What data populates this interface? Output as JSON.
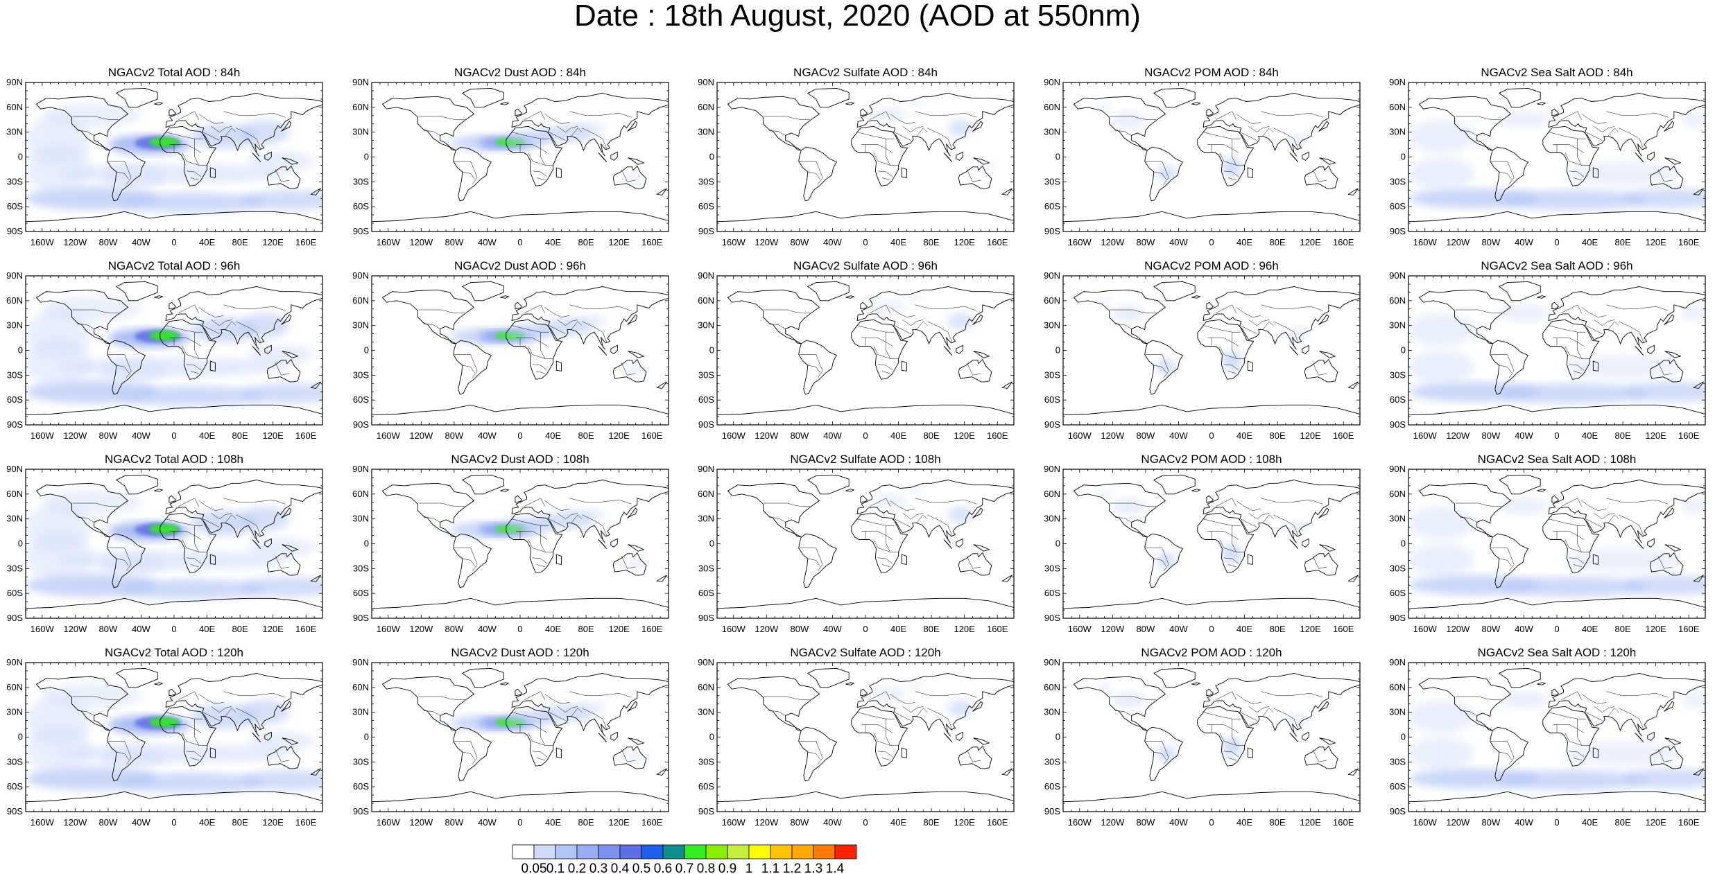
{
  "title": "Date : 18th August, 2020 (AOD at 550nm)",
  "species": [
    {
      "key": "total",
      "label": "NGACv2 Total AOD"
    },
    {
      "key": "dust",
      "label": "NGACv2 Dust AOD"
    },
    {
      "key": "sulfate",
      "label": "NGACv2 Sulfate AOD"
    },
    {
      "key": "pom",
      "label": "NGACv2 POM AOD"
    },
    {
      "key": "seasalt",
      "label": "NGACv2 Sea Salt AOD"
    }
  ],
  "forecast_hours": [
    "84h",
    "96h",
    "108h",
    "120h"
  ],
  "panel_titles": [
    [
      "NGACv2 Total AOD : 84h",
      "NGACv2 Dust AOD : 84h",
      "NGACv2 Sulfate AOD : 84h",
      "NGACv2 POM AOD : 84h",
      "NGACv2 Sea Salt AOD : 84h"
    ],
    [
      "NGACv2 Total AOD : 96h",
      "NGACv2 Dust AOD : 96h",
      "NGACv2 Sulfate AOD : 96h",
      "NGACv2 POM AOD : 96h",
      "NGACv2 Sea Salt AOD : 96h"
    ],
    [
      "NGACv2 Total AOD : 108h",
      "NGACv2 Dust AOD : 108h",
      "NGACv2 Sulfate AOD : 108h",
      "NGACv2 POM AOD : 108h",
      "NGACv2 Sea Salt AOD : 108h"
    ],
    [
      "NGACv2 Total AOD : 120h",
      "NGACv2 Dust AOD : 120h",
      "NGACv2 Sulfate AOD : 120h",
      "NGACv2 POM AOD : 120h",
      "NGACv2 Sea Salt  AOD : 120h"
    ]
  ],
  "lat_ticks": [
    "90N",
    "60N",
    "30N",
    "0",
    "30S",
    "60S",
    "90S"
  ],
  "lon_ticks": [
    "160W",
    "120W",
    "80W",
    "40W",
    "0",
    "40E",
    "80E",
    "120E",
    "160E"
  ],
  "colorbar": {
    "labels": [
      "0.05",
      "0.1",
      "0.2",
      "0.3",
      "0.4",
      "0.5",
      "0.6",
      "0.7",
      "0.8",
      "0.9",
      "1",
      "1.1",
      "1.2",
      "1.3",
      "1.4"
    ],
    "colors": [
      "#ffffff",
      "#d0dcfa",
      "#b4c6f6",
      "#98aef2",
      "#7c92ee",
      "#5e6ee6",
      "#1f5fee",
      "#0f8e8e",
      "#33ee1e",
      "#8aee00",
      "#c6ee3e",
      "#ffff00",
      "#ffc400",
      "#ffa800",
      "#ff7800",
      "#ff2200"
    ]
  }
}
